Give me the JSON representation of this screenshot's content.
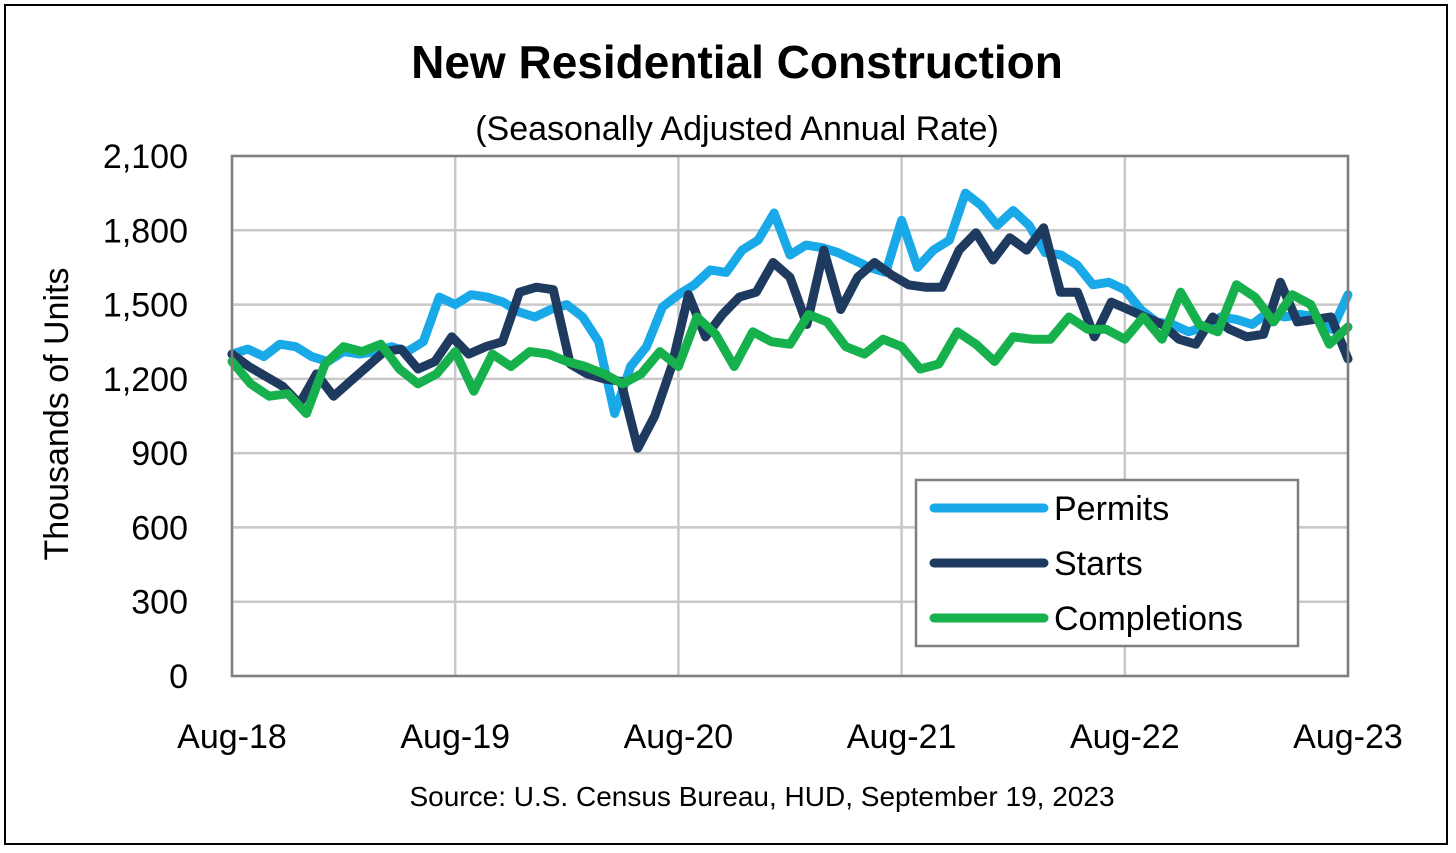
{
  "chart_data": {
    "type": "line",
    "title": "New Residential Construction",
    "subtitle": "(Seasonally Adjusted Annual Rate)",
    "xlabel": "",
    "ylabel": "Thousands of Units",
    "ylim": [
      0,
      2100
    ],
    "yticks": [
      0,
      300,
      600,
      900,
      1200,
      1500,
      1800,
      2100
    ],
    "ytick_labels": [
      "0",
      "300",
      "600",
      "900",
      "1,200",
      "1,500",
      "1,800",
      "2,100"
    ],
    "xticks": [
      "Aug-18",
      "Aug-19",
      "Aug-20",
      "Aug-21",
      "Aug-22",
      "Aug-23"
    ],
    "grid": true,
    "legend_position": "bottom-right",
    "source": "Source:  U.S. Census Bureau, HUD, September 19, 2023",
    "series": [
      {
        "name": "Permits",
        "color": "#1aa9e8",
        "values": [
          1300,
          1320,
          1290,
          1340,
          1330,
          1290,
          1270,
          1310,
          1300,
          1310,
          1330,
          1310,
          1350,
          1530,
          1500,
          1540,
          1530,
          1510,
          1470,
          1450,
          1480,
          1500,
          1450,
          1350,
          1060,
          1250,
          1330,
          1490,
          1540,
          1580,
          1640,
          1630,
          1720,
          1760,
          1870,
          1700,
          1740,
          1730,
          1710,
          1680,
          1650,
          1630,
          1840,
          1650,
          1720,
          1760,
          1950,
          1900,
          1820,
          1880,
          1820,
          1710,
          1700,
          1660,
          1580,
          1590,
          1560,
          1480,
          1430,
          1420,
          1390,
          1410,
          1450,
          1440,
          1420,
          1470,
          1450,
          1460,
          1450,
          1400,
          1540
        ]
      },
      {
        "name": "Starts",
        "color": "#1f3a5f",
        "values": [
          1300,
          1250,
          1210,
          1170,
          1100,
          1220,
          1130,
          1190,
          1250,
          1310,
          1320,
          1240,
          1270,
          1370,
          1300,
          1330,
          1350,
          1550,
          1570,
          1560,
          1260,
          1220,
          1200,
          1190,
          920,
          1050,
          1250,
          1540,
          1370,
          1460,
          1530,
          1550,
          1670,
          1610,
          1420,
          1720,
          1480,
          1610,
          1670,
          1620,
          1580,
          1570,
          1570,
          1720,
          1790,
          1680,
          1770,
          1720,
          1810,
          1550,
          1550,
          1370,
          1510,
          1480,
          1450,
          1420,
          1360,
          1340,
          1450,
          1400,
          1370,
          1380,
          1590,
          1430,
          1440,
          1450,
          1280
        ]
      },
      {
        "name": "Completions",
        "color": "#16b04c",
        "values": [
          1270,
          1180,
          1130,
          1140,
          1060,
          1260,
          1330,
          1310,
          1340,
          1240,
          1180,
          1220,
          1310,
          1150,
          1300,
          1250,
          1310,
          1300,
          1270,
          1250,
          1220,
          1180,
          1220,
          1310,
          1250,
          1450,
          1380,
          1250,
          1390,
          1350,
          1340,
          1460,
          1430,
          1330,
          1300,
          1360,
          1330,
          1240,
          1260,
          1390,
          1340,
          1270,
          1370,
          1360,
          1360,
          1450,
          1400,
          1400,
          1360,
          1450,
          1360,
          1550,
          1420,
          1390,
          1580,
          1530,
          1430,
          1540,
          1500,
          1340,
          1410
        ]
      }
    ]
  }
}
